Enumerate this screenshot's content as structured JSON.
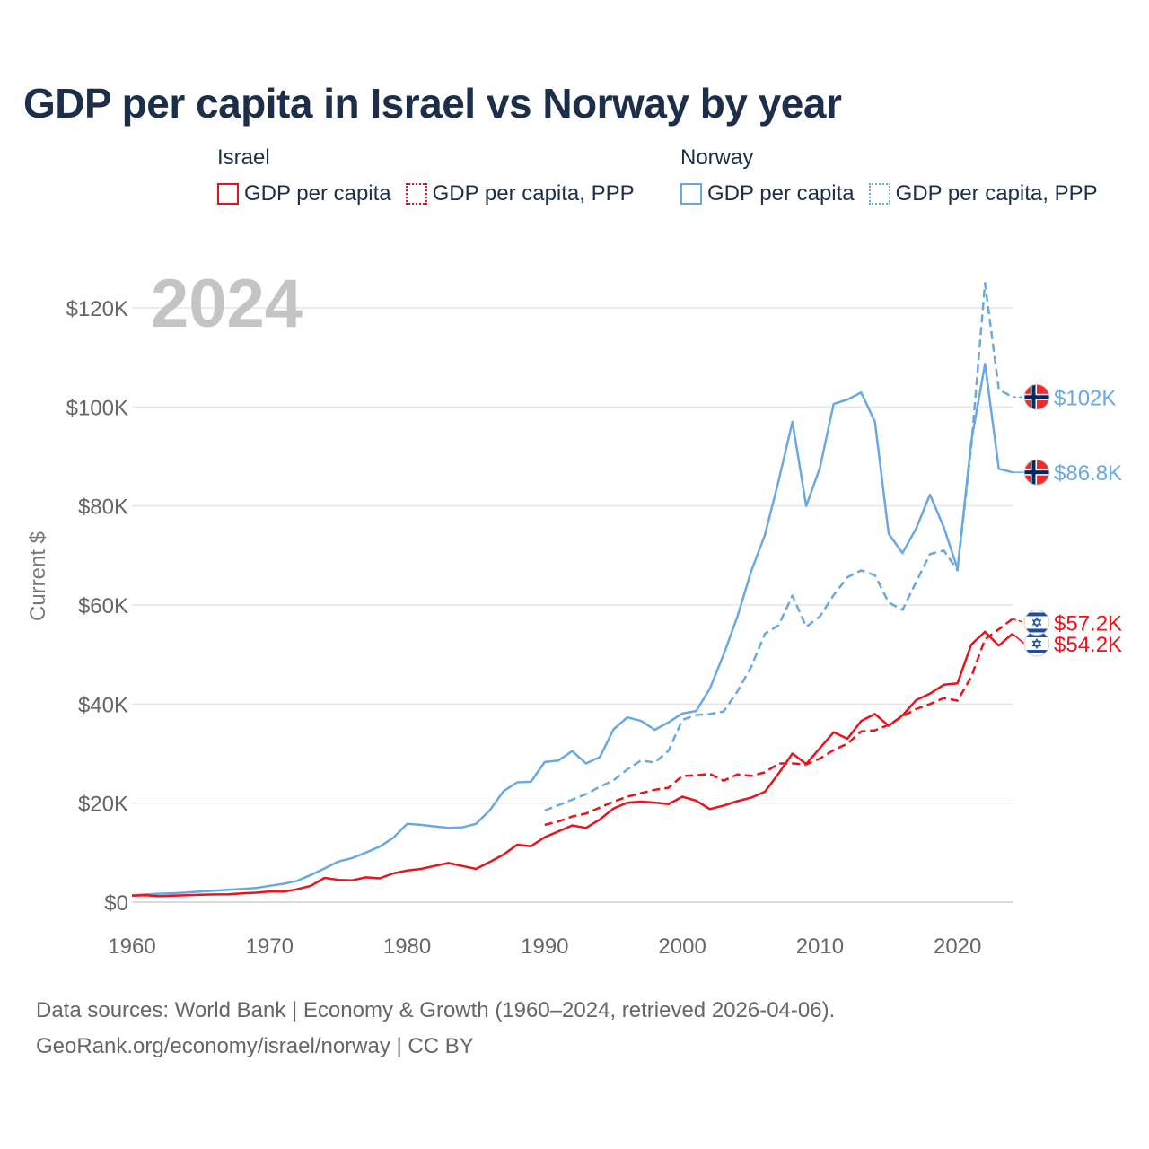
{
  "title": "GDP per capita in Israel vs Norway by year",
  "year_watermark": "2024",
  "legend": {
    "israel": {
      "name": "Israel",
      "items": [
        "GDP per capita",
        "GDP per capita, PPP"
      ]
    },
    "norway": {
      "name": "Norway",
      "items": [
        "GDP per capita",
        "GDP per capita, PPP"
      ]
    }
  },
  "footer": {
    "line1": "Data sources: World Bank | Economy & Growth (1960–2024, retrieved 2026-04-06).",
    "line2": "GeoRank.org/economy/israel/norway | CC BY"
  },
  "colors": {
    "israel": "#e8141c",
    "norway": "#6aa8e2"
  },
  "chart_data": {
    "type": "line",
    "ylabel": "Current $",
    "xlabel": "",
    "xlim": [
      1960,
      2024
    ],
    "ylim": [
      0,
      130000
    ],
    "x_ticks": [
      1960,
      1970,
      1980,
      1990,
      2000,
      2010,
      2020
    ],
    "y_ticks": [
      0,
      20000,
      40000,
      60000,
      80000,
      100000,
      120000
    ],
    "y_tick_labels": [
      "$0",
      "$20K",
      "$40K",
      "$60K",
      "$80K",
      "$100K",
      "$120K"
    ],
    "series": [
      {
        "name": "Norway GDP per capita",
        "country": "norway",
        "dashed": false,
        "end_label": "$86.8K",
        "flag": "norway",
        "start_year": 1960,
        "values": [
          1400,
          1560,
          1700,
          1800,
          1950,
          2150,
          2300,
          2500,
          2650,
          2850,
          3300,
          3700,
          4300,
          5500,
          6800,
          8200,
          8900,
          10000,
          11200,
          13000,
          15800,
          15600,
          15300,
          15000,
          15100,
          15800,
          18500,
          22400,
          24200,
          24300,
          28300,
          28600,
          30500,
          28000,
          29300,
          34900,
          37300,
          36600,
          34800,
          36300,
          38100,
          38600,
          43100,
          50000,
          57600,
          66800,
          74100,
          85100,
          97000,
          80000,
          87700,
          100600,
          101500,
          102900,
          97000,
          74400,
          70500,
          75500,
          82300,
          75700,
          67300,
          93000,
          108700,
          87500,
          86800
        ]
      },
      {
        "name": "Norway GDP per capita, PPP",
        "country": "norway",
        "dashed": true,
        "end_label": "$102K",
        "flag": "norway",
        "start_year": 1990,
        "values": [
          18500,
          19600,
          20700,
          21800,
          23300,
          24600,
          26800,
          28600,
          28200,
          30600,
          36800,
          37800,
          38000,
          38500,
          42500,
          47500,
          54200,
          55900,
          61900,
          55600,
          57700,
          62000,
          65600,
          67000,
          66000,
          60500,
          59000,
          64700,
          70300,
          71000,
          67000,
          92000,
          125000,
          103500,
          102000
        ]
      },
      {
        "name": "Israel GDP per capita",
        "country": "israel",
        "dashed": false,
        "end_label": "$54.2K",
        "flag": "israel",
        "start_year": 1960,
        "values": [
          1300,
          1400,
          1200,
          1300,
          1400,
          1500,
          1550,
          1600,
          1750,
          1900,
          2150,
          2100,
          2600,
          3300,
          4900,
          4500,
          4400,
          5000,
          4800,
          5800,
          6400,
          6700,
          7300,
          7900,
          7300,
          6700,
          8100,
          9600,
          11600,
          11300,
          13100,
          14300,
          15500,
          15000,
          16700,
          18900,
          20100,
          20300,
          20100,
          19800,
          21300,
          20500,
          18800,
          19500,
          20400,
          21100,
          22300,
          26000,
          30000,
          27900,
          31100,
          34300,
          33000,
          36600,
          38000,
          35600,
          37700,
          40800,
          42100,
          43900,
          44200,
          52000,
          54600,
          51800,
          54200
        ]
      },
      {
        "name": "Israel GDP per capita, PPP",
        "country": "israel",
        "dashed": true,
        "end_label": "$57.2K",
        "flag": "israel",
        "start_year": 1990,
        "values": [
          15600,
          16300,
          17300,
          17900,
          19100,
          20300,
          21300,
          22000,
          22700,
          23100,
          25500,
          25600,
          25900,
          24500,
          25800,
          25500,
          26200,
          28000,
          28000,
          27800,
          29000,
          30700,
          32000,
          34500,
          34700,
          35800,
          37500,
          39000,
          40000,
          41200,
          40700,
          45500,
          53100,
          55100,
          57200
        ]
      }
    ]
  }
}
